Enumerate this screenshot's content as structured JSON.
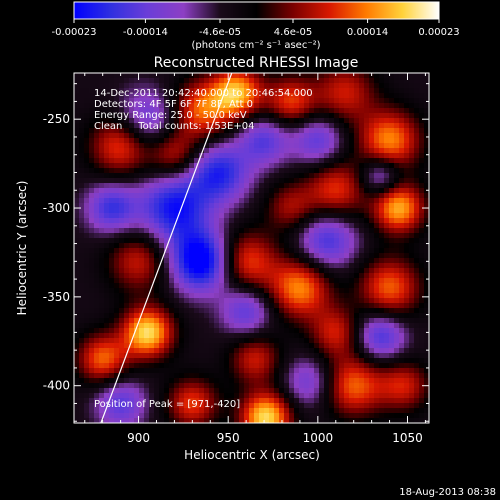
{
  "chart_data": {
    "type": "heatmap",
    "title": "Reconstructed RHESSI Image",
    "xlabel": "Heliocentric X (arcsec)",
    "ylabel": "Heliocentric Y (arcsec)",
    "xlim": [
      864,
      1062
    ],
    "ylim": [
      -421,
      -224
    ],
    "x_ticks": [
      900,
      950,
      1000,
      1050
    ],
    "y_ticks": [
      -250,
      -300,
      -350,
      -400
    ],
    "grid": false,
    "colorbar": {
      "range": [
        -0.00023,
        0.00023
      ],
      "tick_values": [
        -0.00023,
        -0.00014,
        -4.6e-05,
        4.6e-05,
        0.00014,
        0.00023
      ],
      "tick_labels": [
        "-0.00023",
        "-0.00014",
        "-4.6e-05",
        "4.6e-05",
        "0.00014",
        "0.00023"
      ],
      "unit_label": "(photons cm⁻² s⁻¹ asec⁻²)",
      "colormap": [
        "#0000ff",
        "#2f2fe0",
        "#6a3dd8",
        "#8d3fc4",
        "#1a0a1a",
        "#000000",
        "#7a0000",
        "#d81800",
        "#ff7a00",
        "#ffd23a",
        "#ffffff"
      ]
    },
    "annotations": [
      "14-Dec-2011 20:42:40.000 to 20:46:54.000",
      "Detectors: 4F 5F 6F 7F 8F, Att 0",
      "Energy Range: 25.0 - 50.0 keV",
      "Clean     Total counts: 1.53E+04",
      "Position of Peak = [971,-420]"
    ],
    "peak": {
      "x": 971,
      "y": -420
    },
    "limb_line": [
      [
        879,
        -421
      ],
      [
        952,
        -224
      ]
    ],
    "sources": [
      {
        "x": 935,
        "y": -245,
        "sigma": 12,
        "amp": 0.00016
      },
      {
        "x": 955,
        "y": -235,
        "sigma": 10,
        "amp": 0.0002
      },
      {
        "x": 985,
        "y": -240,
        "sigma": 10,
        "amp": 0.00014
      },
      {
        "x": 1015,
        "y": -235,
        "sigma": 12,
        "amp": 0.00012
      },
      {
        "x": 1040,
        "y": -262,
        "sigma": 12,
        "amp": 0.00018
      },
      {
        "x": 890,
        "y": -265,
        "sigma": 12,
        "amp": 0.00015
      },
      {
        "x": 920,
        "y": -270,
        "sigma": 10,
        "amp": 0.00012
      },
      {
        "x": 1010,
        "y": -290,
        "sigma": 12,
        "amp": 0.00014
      },
      {
        "x": 1045,
        "y": -300,
        "sigma": 10,
        "amp": 0.0002
      },
      {
        "x": 985,
        "y": -300,
        "sigma": 10,
        "amp": 0.0001
      },
      {
        "x": 900,
        "y": -330,
        "sigma": 12,
        "amp": 0.00012
      },
      {
        "x": 960,
        "y": -330,
        "sigma": 12,
        "amp": 0.00015
      },
      {
        "x": 990,
        "y": -345,
        "sigma": 12,
        "amp": 0.00018
      },
      {
        "x": 1040,
        "y": -345,
        "sigma": 12,
        "amp": 0.00016
      },
      {
        "x": 1010,
        "y": -370,
        "sigma": 10,
        "amp": 0.00012
      },
      {
        "x": 905,
        "y": -370,
        "sigma": 10,
        "amp": 0.00023
      },
      {
        "x": 880,
        "y": -385,
        "sigma": 10,
        "amp": 0.00016
      },
      {
        "x": 965,
        "y": -385,
        "sigma": 10,
        "amp": 0.00012
      },
      {
        "x": 1020,
        "y": -400,
        "sigma": 12,
        "amp": 0.00016
      },
      {
        "x": 971,
        "y": -418,
        "sigma": 10,
        "amp": 0.00023
      },
      {
        "x": 930,
        "y": -410,
        "sigma": 10,
        "amp": 0.00014
      },
      {
        "x": 1048,
        "y": -400,
        "sigma": 10,
        "amp": 0.00012
      },
      {
        "x": 920,
        "y": -300,
        "sigma": 14,
        "amp": -0.00018
      },
      {
        "x": 885,
        "y": -300,
        "sigma": 10,
        "amp": -0.00014
      },
      {
        "x": 935,
        "y": -330,
        "sigma": 12,
        "amp": -0.00023
      },
      {
        "x": 945,
        "y": -280,
        "sigma": 12,
        "amp": -0.00016
      },
      {
        "x": 970,
        "y": -262,
        "sigma": 10,
        "amp": -0.00012
      },
      {
        "x": 1000,
        "y": -262,
        "sigma": 10,
        "amp": -0.00012
      },
      {
        "x": 1035,
        "y": -282,
        "sigma": 8,
        "amp": -0.00012
      },
      {
        "x": 1005,
        "y": -318,
        "sigma": 12,
        "amp": -0.00014
      },
      {
        "x": 960,
        "y": -358,
        "sigma": 10,
        "amp": -0.00012
      },
      {
        "x": 1035,
        "y": -372,
        "sigma": 10,
        "amp": -0.00014
      },
      {
        "x": 890,
        "y": -410,
        "sigma": 10,
        "amp": -0.00012
      },
      {
        "x": 995,
        "y": -398,
        "sigma": 10,
        "amp": -0.0001
      },
      {
        "x": 905,
        "y": -250,
        "sigma": 12,
        "amp": -0.00012
      }
    ]
  },
  "footer": {
    "timestamp": "18-Aug-2013 08:38"
  }
}
